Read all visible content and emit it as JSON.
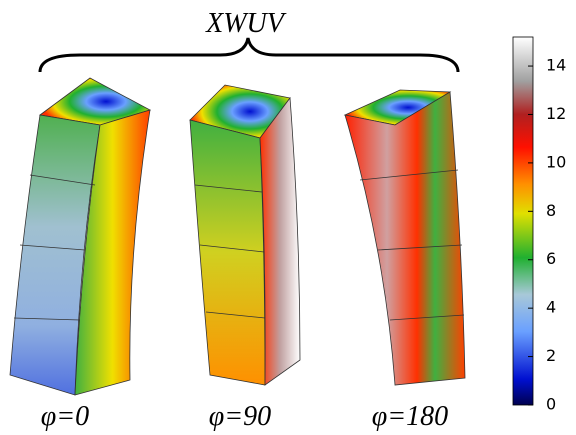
{
  "title": "XWUV",
  "panels": [
    {
      "label": "φ=0"
    },
    {
      "label": "φ=90"
    },
    {
      "label": "φ=180"
    }
  ],
  "colorbar": {
    "lim": [
      0,
      15.2
    ],
    "ticks": [
      0,
      2,
      4,
      6,
      8,
      10,
      12,
      14
    ]
  }
}
